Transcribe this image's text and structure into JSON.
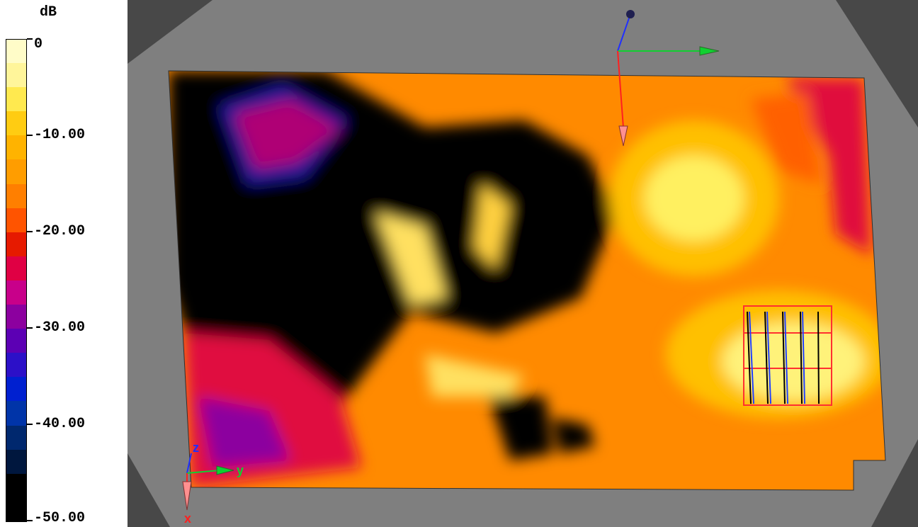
{
  "colorbar": {
    "unit": "dB",
    "ticks": [
      {
        "value": 0,
        "label": "0"
      },
      {
        "value": -10,
        "label": "-10.00"
      },
      {
        "value": -20,
        "label": "-20.00"
      },
      {
        "value": -30,
        "label": "-30.00"
      },
      {
        "value": -40,
        "label": "-40.00"
      },
      {
        "value": -50,
        "label": "-50.00"
      }
    ],
    "range": [
      -50,
      0
    ],
    "colors": [
      "#FFFCC8",
      "#FFF59A",
      "#FFE94F",
      "#FFCC12",
      "#FFB300",
      "#FF9D00",
      "#FF7F00",
      "#FF5400",
      "#E61A00",
      "#E00044",
      "#C8008A",
      "#8C009F",
      "#5C00B4",
      "#2C10C8",
      "#0020D0",
      "#0034A8",
      "#00286E",
      "#00173E",
      "#000000",
      "#000000"
    ]
  },
  "viewport": {
    "axes_labels": {
      "z": "z",
      "y": "y",
      "x": "x"
    },
    "colors": {
      "background": "#484848",
      "phantom": "#7F7F7F",
      "x_axis": "#ff2020",
      "y_axis": "#10d030",
      "z_axis": "#2030ff"
    }
  }
}
